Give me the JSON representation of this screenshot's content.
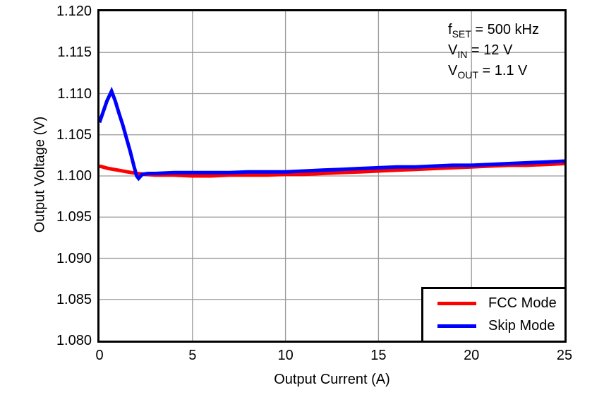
{
  "figure": {
    "background": "#ffffff"
  },
  "colors": {
    "grid": "#999999",
    "axis": "#000000",
    "fcc": "#FF0000",
    "skip": "#0000FF"
  },
  "annotations": [
    {
      "base": "f",
      "sub": "SET",
      "rest": " = 500 kHz"
    },
    {
      "base": "V",
      "sub": "IN",
      "rest": " = 12 V"
    },
    {
      "base": "V",
      "sub": "OUT",
      "rest": " = 1.1 V"
    }
  ],
  "chart_data": {
    "type": "line",
    "title": "",
    "xlabel": "Output Current (A)",
    "ylabel": "Output Voltage (V)",
    "xlim": [
      0,
      25
    ],
    "ylim": [
      1.08,
      1.12
    ],
    "x_ticks": [
      0,
      5,
      10,
      15,
      20,
      25
    ],
    "x_tick_labels": [
      "0",
      "5",
      "10",
      "15",
      "20",
      "25"
    ],
    "y_ticks": [
      1.12,
      1.115,
      1.11,
      1.105,
      1.1,
      1.095,
      1.09,
      1.085,
      1.08
    ],
    "y_tick_labels": [
      "1.120",
      "1.115",
      "1.110",
      "1.105",
      "1.100",
      "1.095",
      "1.090",
      "1.085",
      "1.080"
    ],
    "grid": true,
    "legend_position": "lower right",
    "series": [
      {
        "name": "FCC Mode",
        "color": "#FF0000",
        "x": [
          0,
          0.5,
          1,
          1.5,
          2,
          2.5,
          3,
          4,
          5,
          6,
          7,
          8,
          9,
          10,
          11,
          12,
          13,
          14,
          15,
          16,
          17,
          18,
          19,
          20,
          21,
          22,
          23,
          24,
          25
        ],
        "y": [
          1.1012,
          1.1009,
          1.1007,
          1.1005,
          1.1003,
          1.1002,
          1.1001,
          1.1001,
          1.1,
          1.1,
          1.1001,
          1.1001,
          1.1001,
          1.1002,
          1.1002,
          1.1003,
          1.1004,
          1.1005,
          1.1006,
          1.1007,
          1.1008,
          1.1009,
          1.101,
          1.1011,
          1.1012,
          1.1013,
          1.1013,
          1.1014,
          1.1015
        ]
      },
      {
        "name": "Skip Mode",
        "color": "#0000FF",
        "x": [
          0,
          0.2,
          0.4,
          0.65,
          0.85,
          1.05,
          1.25,
          1.45,
          1.65,
          1.85,
          2.0,
          2.1,
          2.3,
          2.6,
          3,
          4,
          5,
          6,
          7,
          8,
          9,
          10,
          11,
          12,
          13,
          14,
          15,
          16,
          17,
          18,
          19,
          20,
          21,
          22,
          23,
          24,
          25
        ],
        "y": [
          1.1065,
          1.1078,
          1.1091,
          1.1103,
          1.1091,
          1.1076,
          1.1062,
          1.1046,
          1.103,
          1.1012,
          1.1,
          1.0997,
          1.1002,
          1.1003,
          1.1003,
          1.1004,
          1.1004,
          1.1004,
          1.1004,
          1.1005,
          1.1005,
          1.1005,
          1.1006,
          1.1007,
          1.1008,
          1.1009,
          1.101,
          1.1011,
          1.1011,
          1.1012,
          1.1013,
          1.1013,
          1.1014,
          1.1015,
          1.1016,
          1.1017,
          1.1018
        ]
      }
    ]
  },
  "legend": {
    "items": [
      {
        "label": "FCC Mode",
        "color": "#FF0000"
      },
      {
        "label": "Skip Mode",
        "color": "#0000FF"
      }
    ]
  }
}
